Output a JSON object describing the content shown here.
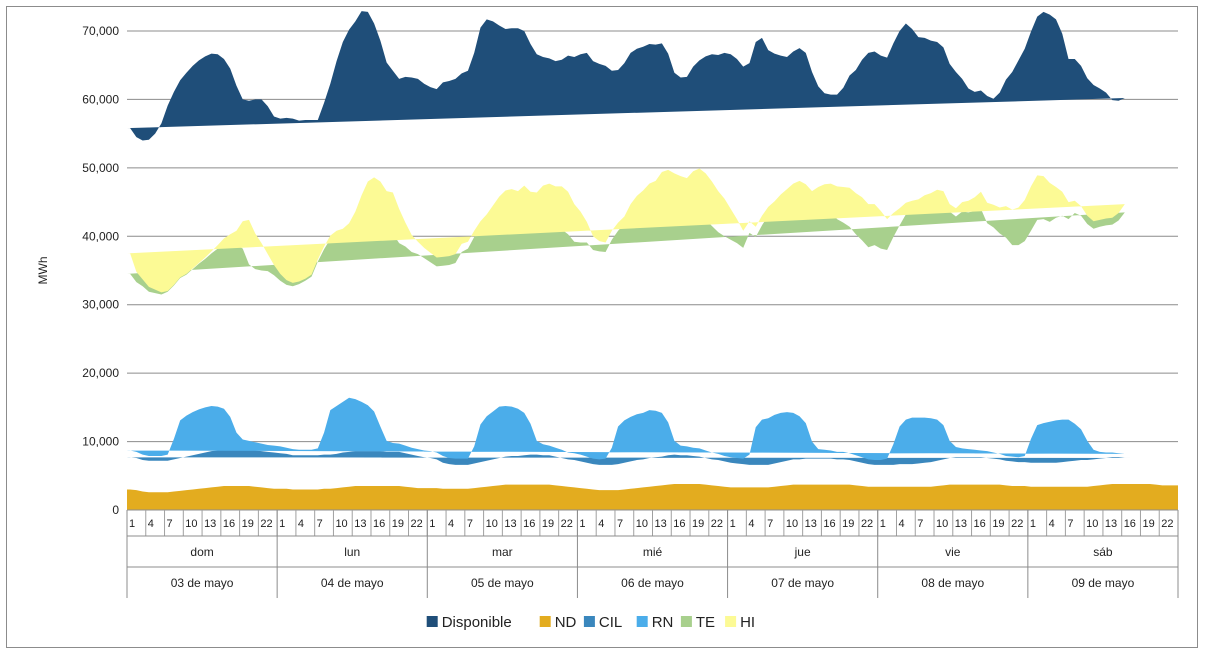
{
  "chart_data": {
    "type": "area",
    "stacked": true,
    "ylabel": "MWh",
    "xlabel": "",
    "ylim": [
      0,
      70000
    ],
    "yticks": [
      0,
      10000,
      20000,
      30000,
      40000,
      50000,
      60000,
      70000
    ],
    "ytick_labels": [
      "0",
      "10,000",
      "20,000",
      "30,000",
      "40,000",
      "50,000",
      "60,000",
      "70,000"
    ],
    "grid": "horizontal",
    "legend": "bottom-center",
    "hours_per_day": 24,
    "hour_tick_labels": [
      "1",
      "4",
      "7",
      "10",
      "13",
      "16",
      "19",
      "22"
    ],
    "days": [
      {
        "weekday": "dom",
        "date": "03 de mayo"
      },
      {
        "weekday": "lun",
        "date": "04 de mayo"
      },
      {
        "weekday": "mar",
        "date": "05 de mayo"
      },
      {
        "weekday": "mié",
        "date": "06 de mayo"
      },
      {
        "weekday": "jue",
        "date": "07 de mayo"
      },
      {
        "weekday": "vie",
        "date": "08 de mayo"
      },
      {
        "weekday": "sáb",
        "date": "09 de mayo"
      }
    ],
    "series": [
      {
        "name": "ND",
        "color": "#e3ac1f",
        "values": [
          3000,
          2900,
          2700,
          2600,
          2600,
          2600,
          2600,
          2700,
          2800,
          2900,
          3000,
          3100,
          3200,
          3300,
          3400,
          3500,
          3500,
          3500,
          3500,
          3500,
          3400,
          3300,
          3200,
          3100,
          3100,
          3100,
          3000,
          3000,
          3000,
          3000,
          3000,
          3100,
          3100,
          3200,
          3300,
          3400,
          3500,
          3500,
          3500,
          3500,
          3500,
          3500,
          3500,
          3500,
          3400,
          3300,
          3200,
          3200,
          3200,
          3200,
          3100,
          3100,
          3100,
          3100,
          3100,
          3200,
          3300,
          3400,
          3500,
          3600,
          3700,
          3700,
          3700,
          3700,
          3700,
          3700,
          3700,
          3700,
          3600,
          3500,
          3400,
          3300,
          3200,
          3100,
          3000,
          2900,
          2900,
          2900,
          2900,
          3000,
          3100,
          3200,
          3300,
          3400,
          3500,
          3600,
          3700,
          3800,
          3800,
          3800,
          3800,
          3800,
          3700,
          3600,
          3500,
          3400,
          3300,
          3300,
          3300,
          3300,
          3300,
          3300,
          3300,
          3400,
          3500,
          3600,
          3700,
          3700,
          3700,
          3700,
          3700,
          3700,
          3700,
          3700,
          3700,
          3700,
          3600,
          3500,
          3400,
          3400,
          3400,
          3400,
          3400,
          3400,
          3400,
          3400,
          3400,
          3400,
          3400,
          3500,
          3600,
          3700,
          3700,
          3700,
          3700,
          3700,
          3700,
          3700,
          3700,
          3700,
          3600,
          3500,
          3500,
          3500,
          3400,
          3400,
          3400,
          3400,
          3400,
          3400,
          3400,
          3400,
          3400,
          3400,
          3500,
          3600,
          3700,
          3800,
          3800,
          3800,
          3800,
          3800,
          3800,
          3800,
          3700,
          3600,
          3600,
          3600
        ]
      },
      {
        "name": "CIL",
        "color": "#3a87bd",
        "values": [
          4700,
          4700,
          4600,
          4600,
          4600,
          4600,
          4600,
          4700,
          4800,
          4900,
          5000,
          5100,
          5200,
          5300,
          5300,
          5300,
          5300,
          5300,
          5300,
          5300,
          5300,
          5300,
          5300,
          5300,
          5200,
          5100,
          5000,
          5000,
          5000,
          5000,
          5000,
          5000,
          5000,
          5000,
          5100,
          5100,
          5100,
          5100,
          5100,
          5100,
          5100,
          5000,
          5000,
          5000,
          4900,
          4800,
          4700,
          4500,
          4400,
          4200,
          3800,
          3600,
          3500,
          3500,
          3500,
          3600,
          3700,
          3800,
          3900,
          4000,
          4100,
          4200,
          4200,
          4300,
          4400,
          4400,
          4300,
          4300,
          4200,
          4100,
          4000,
          4000,
          3900,
          3800,
          3700,
          3700,
          3700,
          3700,
          3800,
          3900,
          4000,
          4100,
          4100,
          4200,
          4200,
          4200,
          4300,
          4300,
          4200,
          4200,
          4100,
          4000,
          3900,
          3800,
          3800,
          3700,
          3600,
          3500,
          3400,
          3300,
          3300,
          3300,
          3300,
          3400,
          3500,
          3600,
          3700,
          3700,
          3800,
          3800,
          3800,
          3800,
          3800,
          3700,
          3700,
          3600,
          3500,
          3400,
          3300,
          3200,
          3200,
          3200,
          3200,
          3300,
          3300,
          3300,
          3400,
          3500,
          3600,
          3700,
          3800,
          3900,
          4000,
          4000,
          4000,
          4000,
          4000,
          3900,
          3800,
          3700,
          3600,
          3600,
          3500,
          3500,
          3500,
          3500,
          3500,
          3500,
          3500,
          3600,
          3700,
          3800,
          3900,
          3900,
          3900,
          3900,
          3900,
          3900,
          3900,
          3800,
          3800,
          3800,
          3800,
          3800
        ]
      },
      {
        "name": "RN",
        "color": "#4badea",
        "values": [
          1000,
          900,
          800,
          700,
          700,
          700,
          900,
          3000,
          5500,
          6000,
          6300,
          6500,
          6600,
          6600,
          6400,
          6000,
          4800,
          2500,
          1500,
          1300,
          1200,
          1100,
          1000,
          1000,
          1000,
          900,
          900,
          800,
          800,
          800,
          1000,
          3200,
          6500,
          7000,
          7400,
          7900,
          7600,
          7200,
          6700,
          5800,
          3600,
          1600,
          1300,
          1200,
          1100,
          1000,
          1000,
          1000,
          1000,
          1000,
          1000,
          900,
          900,
          900,
          900,
          2500,
          5500,
          6500,
          7000,
          7500,
          7400,
          7200,
          6900,
          6200,
          4500,
          2000,
          1600,
          1400,
          1300,
          1200,
          1000,
          1000,
          1000,
          900,
          800,
          800,
          900,
          2500,
          5500,
          6200,
          6500,
          6700,
          6800,
          7000,
          6800,
          6400,
          4800,
          2000,
          1400,
          1300,
          1200,
          1200,
          1100,
          1000,
          900,
          800,
          800,
          800,
          800,
          1500,
          5500,
          6600,
          6800,
          7100,
          7200,
          7100,
          6800,
          6300,
          5200,
          2500,
          1400,
          1300,
          1200,
          1100,
          1100,
          1000,
          900,
          800,
          700,
          700,
          700,
          900,
          3000,
          5500,
          6500,
          6800,
          6700,
          6600,
          6400,
          6000,
          5000,
          2500,
          1500,
          1300,
          1200,
          1100,
          1000,
          1000,
          900,
          800,
          700,
          700,
          700,
          900,
          3500,
          5500,
          5800,
          6000,
          6200,
          6200,
          6100,
          5400,
          4500,
          2800,
          1400,
          1000,
          800,
          700,
          600,
          600
        ]
      },
      {
        "name": "TE",
        "color": "#a8d08d",
        "values": [
          25800,
          24800,
          24600,
          24000,
          23800,
          23600,
          23800,
          22400,
          20800,
          20600,
          20900,
          21300,
          21700,
          22300,
          23100,
          24100,
          25500,
          27500,
          27900,
          25800,
          25300,
          25300,
          25400,
          24900,
          24200,
          23800,
          23800,
          24200,
          24700,
          25300,
          27300,
          26800,
          25000,
          24900,
          24300,
          24000,
          24600,
          25700,
          27000,
          28200,
          29300,
          30000,
          30600,
          29300,
          29100,
          28600,
          28500,
          28100,
          27600,
          27200,
          27800,
          28200,
          28600,
          30200,
          30700,
          30600,
          28700,
          28300,
          28600,
          28900,
          29500,
          29200,
          28700,
          29500,
          29900,
          31800,
          32800,
          32800,
          32200,
          32200,
          31900,
          30900,
          31000,
          31300,
          30500,
          30400,
          30200,
          30400,
          28600,
          28700,
          30100,
          30900,
          31400,
          31900,
          32100,
          33200,
          34400,
          35500,
          35200,
          34200,
          34400,
          34200,
          33700,
          33100,
          32400,
          32100,
          31800,
          31400,
          30800,
          32400,
          27800,
          28400,
          29600,
          29900,
          30700,
          31400,
          32200,
          32900,
          32900,
          34100,
          35300,
          35300,
          35000,
          34000,
          33500,
          33100,
          32300,
          31700,
          31000,
          31400,
          30900,
          30500,
          30300,
          29400,
          30000,
          30200,
          30600,
          31300,
          31800,
          32600,
          33200,
          33500,
          33700,
          34600,
          34600,
          34900,
          35300,
          33300,
          32900,
          32200,
          31900,
          30900,
          31000,
          31400,
          30400,
          30000,
          29800,
          29200,
          29600,
          29800,
          29300,
          30800,
          31200,
          31700,
          32300,
          32900,
          33200,
          33300,
          34000,
          35300,
          34600,
          34300,
          34500,
          33800,
          34500,
          34100
        ]
      },
      {
        "name": "HI",
        "color": "#fcfa95",
        "values": [
          3000,
          1500,
          1000,
          700,
          500,
          300,
          100,
          100,
          100,
          100,
          100,
          100,
          200,
          300,
          500,
          800,
          1200,
          2000,
          4000,
          6500,
          5200,
          4000,
          2500,
          1500,
          1000,
          700,
          500,
          400,
          300,
          300,
          300,
          400,
          500,
          700,
          1000,
          1500,
          2800,
          4500,
          5700,
          6000,
          6500,
          6500,
          6000,
          5000,
          3500,
          2500,
          1800,
          1500,
          1400,
          1300,
          1300,
          1300,
          1300,
          1200,
          1000,
          900,
          1000,
          1200,
          1500,
          1800,
          2000,
          2600,
          3100,
          3700,
          4000,
          4500,
          5000,
          5500,
          6000,
          6300,
          6200,
          5500,
          4500,
          3000,
          2000,
          1500,
          1400,
          1300,
          1200,
          1100,
          1000,
          1000,
          1100,
          1200,
          1500,
          2000,
          2500,
          3600,
          4200,
          5000,
          6000,
          6700,
          6800,
          6500,
          6000,
          5500,
          4500,
          3500,
          2500,
          1700,
          1500,
          1400,
          1300,
          1300,
          1200,
          1200,
          1300,
          1500,
          2000,
          2500,
          3000,
          3500,
          4000,
          4800,
          5200,
          5700,
          6000,
          6300,
          6300,
          6000,
          5500,
          4500,
          3500,
          2500,
          1700,
          1500,
          1300,
          1200,
          1100,
          1000,
          1000,
          1100,
          1200,
          1400,
          1700,
          2000,
          2500,
          3000,
          3300,
          3800,
          4600,
          5200,
          5500,
          6000,
          6500,
          6500,
          6300,
          5700,
          4500,
          3500,
          2500,
          1800,
          1400,
          1200,
          1100,
          1000,
          1000,
          1000,
          1100,
          1200,
          1400,
          1700,
          2000,
          2500,
          3000,
          3500,
          4000,
          4500,
          5000,
          5600,
          6000,
          6000,
          5600,
          4500,
          3000,
          2000
        ]
      },
      {
        "name": "Disponible",
        "color": "#1f4e79",
        "values": [
          18300,
          19700,
          20300,
          21500,
          22800,
          24700,
          27100,
          28200,
          28800,
          29400,
          29600,
          29600,
          29400,
          28900,
          27900,
          26200,
          24200,
          21200,
          17800,
          17400,
          19600,
          21000,
          21600,
          21700,
          22700,
          23700,
          24000,
          23500,
          23200,
          22600,
          20400,
          21000,
          22200,
          24800,
          27300,
          28300,
          27800,
          26900,
          24800,
          22500,
          20600,
          18800,
          17800,
          19000,
          21300,
          23000,
          23800,
          24000,
          24200,
          24600,
          25500,
          25600,
          25600,
          24900,
          25000,
          26000,
          28300,
          28500,
          26900,
          25000,
          23600,
          23500,
          23800,
          22600,
          21600,
          20200,
          18800,
          18300,
          18300,
          18500,
          19900,
          21500,
          23000,
          24700,
          25600,
          25900,
          25800,
          23400,
          22300,
          22400,
          22100,
          21500,
          21000,
          20400,
          19900,
          18800,
          17000,
          14700,
          14400,
          14800,
          15300,
          15800,
          17100,
          18600,
          19900,
          21300,
          22600,
          23400,
          24000,
          23100,
          27000,
          26000,
          22900,
          21600,
          20300,
          19300,
          19300,
          19400,
          19200,
          17400,
          14700,
          13300,
          13000,
          13400,
          14500,
          16400,
          18000,
          20100,
          22100,
          22300,
          22700,
          23600,
          24800,
          25900,
          26200,
          25100,
          23700,
          23000,
          22300,
          21600,
          21000,
          20500,
          19900,
          18000,
          16400,
          15400,
          14800,
          15600,
          15500,
          16800,
          18500,
          20100,
          21500,
          22100,
          22600,
          23200,
          24000,
          24600,
          24500,
          23100,
          20900,
          20700,
          20500,
          20100,
          19900,
          19200,
          18400,
          17200,
          16400,
          15500,
          14400,
          14300,
          14100,
          14000,
          12700,
          12100,
          12000,
          13900
        ]
      }
    ],
    "legend_order": [
      "Disponible",
      "ND",
      "CIL",
      "RN",
      "TE",
      "HI"
    ]
  }
}
